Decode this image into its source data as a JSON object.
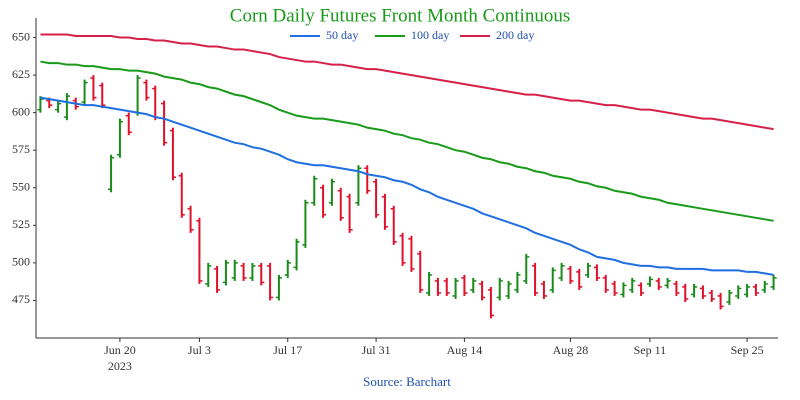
{
  "chart_data": {
    "type": "ohlc",
    "title": "Corn Daily Futures Front Month Continuous",
    "source": "Source: Barchart",
    "year_label": "2023",
    "categories": [
      null,
      null,
      null,
      null,
      null,
      null,
      null,
      null,
      null,
      "Jun 20",
      null,
      null,
      null,
      null,
      null,
      null,
      null,
      null,
      "Jul 3",
      null,
      null,
      null,
      null,
      null,
      null,
      null,
      null,
      null,
      "Jul 17",
      null,
      null,
      null,
      null,
      null,
      null,
      null,
      null,
      null,
      "Jul 31",
      null,
      null,
      null,
      null,
      null,
      null,
      null,
      null,
      null,
      "Aug 14",
      null,
      null,
      null,
      null,
      null,
      null,
      null,
      null,
      null,
      null,
      null,
      "Aug 28",
      null,
      null,
      null,
      null,
      null,
      null,
      null,
      null,
      "Sep 11",
      null,
      null,
      null,
      null,
      null,
      null,
      null,
      null,
      null,
      null,
      "Sep 25",
      null,
      null,
      null
    ],
    "open": [
      602,
      608,
      602,
      597,
      608,
      607,
      623,
      618,
      549,
      572,
      598,
      600,
      620,
      616,
      606,
      588,
      558,
      536,
      528,
      486,
      496,
      487,
      490,
      498,
      490,
      498,
      498,
      477,
      492,
      497,
      512,
      540,
      550,
      540,
      548,
      544,
      540,
      563,
      554,
      544,
      536,
      518,
      516,
      506,
      480,
      488,
      488,
      478,
      490,
      482,
      486,
      482,
      477,
      478,
      482,
      488,
      498,
      486,
      482,
      490,
      496,
      494,
      492,
      497,
      490,
      486,
      479,
      482,
      485,
      486,
      488,
      485,
      486,
      484,
      479,
      483,
      480,
      478,
      474,
      478,
      479,
      484,
      482,
      484
    ],
    "high": [
      611,
      610,
      608,
      613,
      610,
      622,
      625,
      620,
      572,
      596,
      600,
      625,
      622,
      618,
      608,
      590,
      560,
      538,
      530,
      500,
      498,
      502,
      502,
      500,
      500,
      500,
      500,
      492,
      502,
      516,
      542,
      558,
      552,
      556,
      550,
      546,
      565,
      565,
      556,
      546,
      538,
      520,
      518,
      508,
      494,
      490,
      490,
      490,
      492,
      490,
      488,
      484,
      490,
      488,
      494,
      506,
      500,
      488,
      497,
      500,
      498,
      496,
      500,
      499,
      492,
      488,
      487,
      490,
      487,
      491,
      490,
      490,
      488,
      486,
      486,
      485,
      482,
      480,
      482,
      485,
      486,
      486,
      488,
      492
    ],
    "low": [
      600,
      603,
      600,
      595,
      602,
      605,
      608,
      603,
      547,
      570,
      585,
      598,
      608,
      595,
      578,
      555,
      530,
      520,
      486,
      484,
      480,
      485,
      488,
      488,
      488,
      485,
      475,
      475,
      490,
      495,
      510,
      538,
      530,
      538,
      528,
      520,
      538,
      546,
      530,
      522,
      512,
      498,
      494,
      480,
      478,
      478,
      478,
      476,
      478,
      480,
      475,
      463,
      475,
      476,
      480,
      486,
      478,
      476,
      480,
      488,
      486,
      482,
      490,
      488,
      480,
      478,
      477,
      480,
      478,
      484,
      482,
      483,
      478,
      474,
      477,
      476,
      474,
      469,
      472,
      476,
      477,
      478,
      480,
      482
    ],
    "close": [
      609,
      605,
      606,
      611,
      604,
      620,
      610,
      605,
      570,
      594,
      587,
      623,
      610,
      597,
      580,
      557,
      532,
      522,
      488,
      498,
      482,
      500,
      500,
      490,
      498,
      487,
      477,
      490,
      500,
      514,
      540,
      556,
      532,
      554,
      530,
      522,
      563,
      548,
      532,
      524,
      514,
      500,
      496,
      482,
      492,
      480,
      480,
      488,
      480,
      488,
      477,
      465,
      488,
      486,
      492,
      504,
      480,
      478,
      495,
      498,
      488,
      484,
      498,
      490,
      482,
      480,
      485,
      488,
      480,
      489,
      484,
      488,
      480,
      476,
      484,
      478,
      476,
      471,
      480,
      483,
      484,
      480,
      486,
      490
    ],
    "up_color": "#1a8a1a",
    "down_color": "#e0102a",
    "series": [
      {
        "name": "50 day",
        "color": "#1f6fe0",
        "values": [
          610,
          609,
          608,
          607,
          606,
          605,
          605,
          604,
          603,
          602,
          601,
          600,
          599,
          597,
          596,
          594,
          592,
          590,
          588,
          586,
          584,
          582,
          580,
          579,
          577,
          576,
          574,
          572,
          569,
          567,
          566,
          565,
          565,
          564,
          563,
          562,
          561,
          559,
          558,
          557,
          555,
          554,
          552,
          549,
          547,
          544,
          542,
          540,
          538,
          536,
          533,
          531,
          529,
          527,
          525,
          523,
          520,
          518,
          516,
          514,
          512,
          509,
          507,
          504,
          503,
          502,
          500,
          499,
          498,
          498,
          497,
          497,
          496,
          496,
          496,
          496,
          495,
          495,
          495,
          495,
          494,
          494,
          493,
          492
        ]
      },
      {
        "name": "100 day",
        "color": "#1a9a1a",
        "values": [
          634,
          633,
          633,
          632,
          632,
          631,
          631,
          630,
          629,
          629,
          628,
          628,
          627,
          626,
          624,
          623,
          622,
          620,
          619,
          617,
          616,
          614,
          612,
          611,
          609,
          607,
          605,
          602,
          600,
          598,
          597,
          596,
          596,
          595,
          594,
          593,
          592,
          590,
          589,
          588,
          586,
          585,
          583,
          582,
          580,
          579,
          577,
          575,
          574,
          572,
          570,
          569,
          567,
          566,
          564,
          563,
          561,
          560,
          558,
          557,
          556,
          554,
          553,
          551,
          550,
          548,
          547,
          546,
          544,
          543,
          542,
          540,
          539,
          538,
          537,
          536,
          535,
          534,
          533,
          532,
          531,
          530,
          529,
          528
        ]
      },
      {
        "name": "200 day",
        "color": "#d6204a",
        "values": [
          652,
          652,
          652,
          652,
          651,
          651,
          651,
          651,
          651,
          650,
          650,
          649,
          649,
          648,
          648,
          647,
          646,
          646,
          645,
          644,
          644,
          643,
          642,
          642,
          641,
          640,
          639,
          637,
          636,
          635,
          634,
          634,
          633,
          632,
          632,
          631,
          630,
          629,
          629,
          628,
          627,
          626,
          625,
          624,
          623,
          622,
          621,
          620,
          619,
          618,
          617,
          616,
          615,
          614,
          613,
          612,
          612,
          611,
          610,
          609,
          608,
          608,
          607,
          606,
          605,
          605,
          604,
          603,
          602,
          602,
          601,
          600,
          599,
          598,
          597,
          596,
          596,
          595,
          594,
          593,
          592,
          591,
          590,
          589
        ]
      }
    ],
    "ylim": [
      450,
      663
    ],
    "yticks": [
      475,
      500,
      525,
      550,
      575,
      600,
      625,
      650
    ],
    "grid": false,
    "legend": "top"
  }
}
